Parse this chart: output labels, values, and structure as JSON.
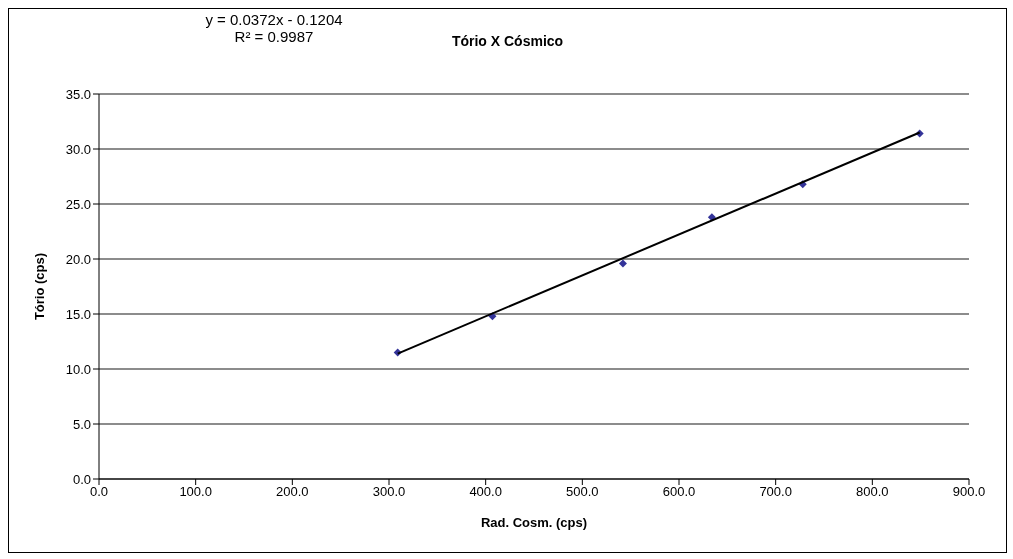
{
  "chart_data": {
    "type": "scatter",
    "title": "Tório X Cósmico",
    "xlabel": "Rad. Cosm. (cps)",
    "ylabel": "Tório (cps)",
    "annotations": [
      "y = 0.0372x - 0.1204",
      "R² = 0.9987"
    ],
    "series": [
      {
        "color": "#333399",
        "marker": "diamond",
        "x": [
          309,
          407,
          542,
          634,
          728,
          849
        ],
        "values": [
          11.5,
          14.8,
          19.6,
          23.8,
          26.8,
          31.4
        ]
      },
      {
        "type": "line",
        "color": "#000000",
        "marker": "none",
        "x": [
          309,
          849
        ],
        "values": [
          11.4,
          31.5
        ]
      }
    ],
    "xlim": [
      0,
      900
    ],
    "xticks": [
      {
        "value": 0,
        "label": "0.0"
      },
      {
        "value": 100,
        "label": "100.0"
      },
      {
        "value": 200,
        "label": "200.0"
      },
      {
        "value": 300,
        "label": "300.0"
      },
      {
        "value": 400,
        "label": "400.0"
      },
      {
        "value": 500,
        "label": "500.0"
      },
      {
        "value": 600,
        "label": "600.0"
      },
      {
        "value": 700,
        "label": "700.0"
      },
      {
        "value": 800,
        "label": "800.0"
      },
      {
        "value": 900,
        "label": "900.0"
      }
    ],
    "ylim": [
      0,
      35
    ],
    "yticks": [
      {
        "value": 0,
        "label": "0.0"
      },
      {
        "value": 5,
        "label": "5.0"
      },
      {
        "value": 10,
        "label": "10.0"
      },
      {
        "value": 15,
        "label": "15.0"
      },
      {
        "value": 20,
        "label": "20.0"
      },
      {
        "value": 25,
        "label": "25.0"
      },
      {
        "value": 30,
        "label": "30.0"
      },
      {
        "value": 35,
        "label": "35.0"
      }
    ],
    "grid": "y",
    "legend": false
  }
}
